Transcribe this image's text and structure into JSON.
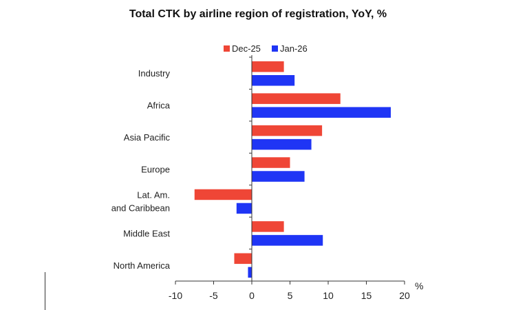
{
  "chart_data": {
    "type": "bar",
    "orientation": "horizontal",
    "title": "Total CTK by airline region of registration, YoY, %",
    "xlabel": "%",
    "ylabel": "",
    "categories": [
      "Industry",
      "Africa",
      "Asia Pacific",
      "Europe",
      "Lat. Am.\nand Caribbean",
      "Middle East",
      "North America"
    ],
    "series": [
      {
        "name": "Dec-25",
        "color": "#EF4636",
        "values": [
          4.2,
          11.6,
          9.2,
          5.0,
          -7.5,
          4.2,
          -2.3
        ]
      },
      {
        "name": "Jan-26",
        "color": "#1F35F5",
        "values": [
          5.6,
          18.2,
          7.8,
          6.9,
          -2.0,
          9.3,
          -0.5
        ]
      }
    ],
    "xlim": [
      -10,
      20
    ],
    "xticks": [
      -10,
      -5,
      0,
      5,
      10,
      15,
      20
    ],
    "grid": false,
    "legend_position": "top"
  }
}
